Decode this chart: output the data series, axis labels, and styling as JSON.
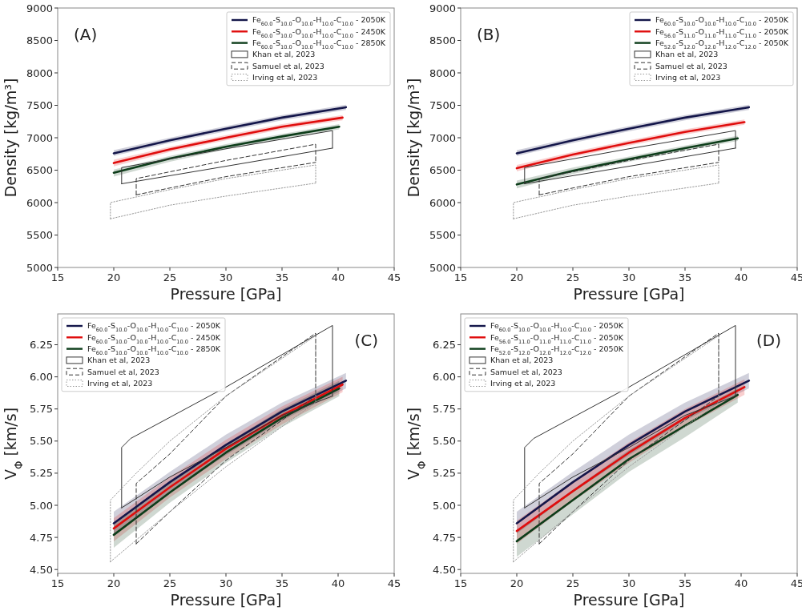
{
  "chart_data": [
    {
      "type": "line",
      "annotations": [
        "(A)"
      ],
      "xlabel": "Pressure [GPa]",
      "ylabel": "Density [kg/m³]",
      "xlim": [
        15,
        45
      ],
      "xticks": [
        15,
        20,
        25,
        30,
        35,
        40,
        45
      ],
      "ylim": [
        5000,
        9000
      ],
      "yticks": [
        5000,
        5500,
        6000,
        6500,
        7000,
        7500,
        8000,
        8500,
        9000
      ],
      "legend": "top right",
      "series": [
        {
          "name": "Fe$_{60.0}$-S$_{10.0}$-O$_{10.0}$-H$_{10.0}$-C$_{10.0}$ - 2050K",
          "color": "#14164a",
          "x": [
            20,
            25,
            30,
            35,
            40.7
          ],
          "values": [
            6760,
            6960,
            7140,
            7310,
            7470
          ],
          "lower": [
            6720,
            6920,
            7100,
            7270,
            7430
          ],
          "upper": [
            6810,
            7000,
            7180,
            7350,
            7510
          ]
        },
        {
          "name": "Fe$_{60.0}$-S$_{10.0}$-O$_{10.0}$-H$_{10.0}$-C$_{10.0}$ - 2450K",
          "color": "#e00d0d",
          "x": [
            20,
            25,
            30,
            35,
            40.4
          ],
          "values": [
            6610,
            6820,
            7000,
            7170,
            7310
          ],
          "lower": [
            6560,
            6780,
            6960,
            7130,
            7270
          ],
          "upper": [
            6660,
            6860,
            7040,
            7210,
            7350
          ]
        },
        {
          "name": "Fe$_{60.0}$-S$_{10.0}$-O$_{10.0}$-H$_{10.0}$-C$_{10.0}$ - 2850K",
          "color": "#0d3d1a",
          "x": [
            20,
            25,
            30,
            35,
            40.1
          ],
          "values": [
            6460,
            6680,
            6860,
            7020,
            7170
          ],
          "lower": [
            6400,
            6630,
            6820,
            6980,
            7130
          ],
          "upper": [
            6510,
            6720,
            6900,
            7060,
            7210
          ]
        },
        {
          "name": "Khan et al, 2023",
          "color": "#333333",
          "line_style": "solid",
          "x": [
            20.7,
            20.7,
            30,
            39.5,
            39.5
          ],
          "values": [
            6290,
            6540,
            6830,
            7110,
            6840
          ]
        },
        {
          "name": "Samuel et al, 2023",
          "color": "#333333",
          "line_style": "dashed",
          "x": [
            22,
            22,
            30,
            38,
            38
          ],
          "values": [
            6120,
            6370,
            6650,
            6900,
            6620
          ]
        },
        {
          "name": "Irving et al, 2023",
          "color": "#999999",
          "line_style": "dotted",
          "x": [
            19.7,
            19.7,
            25,
            30,
            38,
            38
          ],
          "values": [
            5750,
            6000,
            6200,
            6370,
            6580,
            6300
          ]
        },
        {
          "color": "#333333",
          "line_style": "solid",
          "x": [
            20.7,
            30,
            39.5
          ],
          "values": [
            6290,
            6560,
            6840
          ]
        },
        {
          "color": "#333333",
          "line_style": "dashed",
          "x": [
            22,
            30,
            38
          ],
          "values": [
            6120,
            6400,
            6620
          ]
        },
        {
          "color": "#999999",
          "line_style": "dotted",
          "x": [
            19.7,
            25,
            30,
            38
          ],
          "values": [
            5750,
            5960,
            6100,
            6300
          ]
        }
      ]
    },
    {
      "type": "line",
      "annotations": [
        "(B)"
      ],
      "xlabel": "Pressure [GPa]",
      "ylabel": "Density [kg/m³]",
      "xlim": [
        15,
        45
      ],
      "xticks": [
        15,
        20,
        25,
        30,
        35,
        40,
        45
      ],
      "ylim": [
        5000,
        9000
      ],
      "yticks": [
        5000,
        5500,
        6000,
        6500,
        7000,
        7500,
        8000,
        8500,
        9000
      ],
      "legend": "top right",
      "series": [
        {
          "name": "Fe$_{60.0}$-S$_{10.0}$-O$_{10.0}$-H$_{10.0}$-C$_{10.0}$ - 2050K",
          "color": "#14164a",
          "x": [
            20,
            25,
            30,
            35,
            40.7
          ],
          "values": [
            6760,
            6960,
            7140,
            7310,
            7470
          ],
          "lower": [
            6720,
            6920,
            7100,
            7270,
            7430
          ],
          "upper": [
            6810,
            7000,
            7180,
            7350,
            7510
          ]
        },
        {
          "name": "Fe$_{56.0}$-S$_{11.0}$-O$_{11.0}$-H$_{11.0}$-C$_{11.0}$ - 2050K",
          "color": "#e00d0d",
          "x": [
            20,
            25,
            30,
            35,
            40.3
          ],
          "values": [
            6530,
            6740,
            6920,
            7090,
            7240
          ],
          "lower": [
            6480,
            6700,
            6880,
            7050,
            7200
          ],
          "upper": [
            6580,
            6780,
            6960,
            7130,
            7280
          ]
        },
        {
          "name": "Fe$_{52.0}$-S$_{12.0}$-O$_{12.0}$-H$_{12.0}$-C$_{12.0}$ - 2050K",
          "color": "#0d3d1a",
          "x": [
            20,
            25,
            30,
            35,
            39.7
          ],
          "values": [
            6280,
            6490,
            6670,
            6840,
            6990
          ],
          "lower": [
            6220,
            6440,
            6630,
            6800,
            6950
          ],
          "upper": [
            6340,
            6540,
            6710,
            6880,
            7030
          ]
        },
        {
          "name": "Khan et al, 2023",
          "color": "#333333",
          "line_style": "solid",
          "x": [
            20.7,
            20.7,
            30,
            39.5,
            39.5
          ],
          "values": [
            6290,
            6540,
            6830,
            7110,
            6840
          ]
        },
        {
          "name": "Samuel et al, 2023",
          "color": "#333333",
          "line_style": "dashed",
          "x": [
            22,
            22,
            30,
            38,
            38
          ],
          "values": [
            6120,
            6370,
            6650,
            6900,
            6620
          ]
        },
        {
          "name": "Irving et al, 2023",
          "color": "#999999",
          "line_style": "dotted",
          "x": [
            19.7,
            19.7,
            25,
            30,
            38,
            38
          ],
          "values": [
            5750,
            6000,
            6200,
            6370,
            6580,
            6300
          ]
        },
        {
          "color": "#333333",
          "line_style": "solid",
          "x": [
            20.7,
            30,
            39.5
          ],
          "values": [
            6290,
            6560,
            6840
          ]
        },
        {
          "color": "#333333",
          "line_style": "dashed",
          "x": [
            22,
            30,
            38
          ],
          "values": [
            6120,
            6400,
            6620
          ]
        },
        {
          "color": "#999999",
          "line_style": "dotted",
          "x": [
            19.7,
            25,
            30,
            38
          ],
          "values": [
            5750,
            5960,
            6100,
            6300
          ]
        }
      ]
    },
    {
      "type": "line",
      "annotations": [
        "(C)"
      ],
      "xlabel": "Pressure [GPa]",
      "ylabel": "V$_{Φ}$ [km/s]",
      "xlim": [
        15,
        45
      ],
      "xticks": [
        15,
        20,
        25,
        30,
        35,
        40,
        45
      ],
      "ylim": [
        4.47,
        6.49
      ],
      "yticks": [
        {
          "value": 4.5,
          "label": "4.50"
        },
        {
          "value": 4.75,
          "label": "4.75"
        },
        {
          "value": 5,
          "label": "5.00"
        },
        {
          "value": 5.25,
          "label": "5.25"
        },
        {
          "value": 5.5,
          "label": "5.50"
        },
        {
          "value": 5.75,
          "label": "5.75"
        },
        {
          "value": 6,
          "label": "6.00"
        },
        {
          "value": 6.25,
          "label": "6.25"
        }
      ],
      "legend": "top left",
      "series": [
        {
          "name": "Fe$_{60.0}$-S$_{10.0}$-O$_{10.0}$-H$_{10.0}$-C$_{10.0}$ - 2050K",
          "color": "#14164a",
          "x": [
            20,
            25,
            30,
            35,
            40.7
          ],
          "values": [
            4.86,
            5.18,
            5.47,
            5.73,
            5.97
          ],
          "lower": [
            4.78,
            5.1,
            5.39,
            5.66,
            5.91
          ],
          "upper": [
            4.95,
            5.26,
            5.55,
            5.8,
            6.03
          ]
        },
        {
          "name": "Fe$_{60.0}$-S$_{10.0}$-O$_{10.0}$-H$_{10.0}$-C$_{10.0}$ - 2450K",
          "color": "#e00d0d",
          "x": [
            20,
            25,
            30,
            35,
            40.4
          ],
          "values": [
            4.82,
            5.14,
            5.44,
            5.7,
            5.94
          ],
          "lower": [
            4.72,
            5.06,
            5.36,
            5.63,
            5.88
          ],
          "upper": [
            4.9,
            5.22,
            5.51,
            5.77,
            6
          ]
        },
        {
          "name": "Fe$_{60.0}$-S$_{10.0}$-O$_{10.0}$-H$_{10.0}$-C$_{10.0}$ - 2850K",
          "color": "#0d3d1a",
          "x": [
            20,
            25,
            30,
            35,
            40.1
          ],
          "values": [
            4.77,
            5.1,
            5.41,
            5.68,
            5.91
          ],
          "lower": [
            4.67,
            5.02,
            5.33,
            5.61,
            5.85
          ],
          "upper": [
            4.86,
            5.18,
            5.48,
            5.75,
            5.97
          ]
        },
        {
          "name": "Khan et al, 2023",
          "color": "#333333",
          "line_style": "solid",
          "x": [
            20.7,
            20.7,
            21.5,
            30,
            39.5,
            39.5
          ],
          "values": [
            4.98,
            5.45,
            5.52,
            5.92,
            6.4,
            5.85
          ]
        },
        {
          "name": "Samuel et al, 2023",
          "color": "#333333",
          "line_style": "dashed",
          "x": [
            22,
            22,
            25,
            30,
            38,
            38
          ],
          "values": [
            4.7,
            5.17,
            5.4,
            5.85,
            6.34,
            5.85
          ]
        },
        {
          "name": "Irving et al, 2023",
          "color": "#999999",
          "line_style": "dotted",
          "x": [
            19.7,
            19.7,
            22,
            25,
            30,
            38
          ],
          "values": [
            4.56,
            5.04,
            5.25,
            5.5,
            5.85,
            6.32
          ]
        },
        {
          "color": "#333333",
          "line_style": "solid",
          "x": [
            20.7,
            25,
            30,
            35,
            39.5
          ],
          "values": [
            4.98,
            5.22,
            5.45,
            5.7,
            5.85
          ]
        },
        {
          "color": "#333333",
          "line_style": "dashed",
          "x": [
            22,
            25,
            30,
            38
          ],
          "values": [
            4.7,
            4.95,
            5.35,
            5.85
          ]
        },
        {
          "color": "#999999",
          "line_style": "dotted",
          "x": [
            19.7,
            25,
            30,
            38,
            38
          ],
          "values": [
            4.56,
            4.95,
            5.3,
            5.8,
            6.32
          ]
        }
      ]
    },
    {
      "type": "line",
      "annotations": [
        "(D)"
      ],
      "xlabel": "Pressure [GPa]",
      "ylabel": "V$_{Φ}$ [km/s]",
      "xlim": [
        15,
        45
      ],
      "xticks": [
        15,
        20,
        25,
        30,
        35,
        40,
        45
      ],
      "ylim": [
        4.47,
        6.49
      ],
      "yticks": [
        {
          "value": 4.5,
          "label": "4.50"
        },
        {
          "value": 4.75,
          "label": "4.75"
        },
        {
          "value": 5,
          "label": "5.00"
        },
        {
          "value": 5.25,
          "label": "5.25"
        },
        {
          "value": 5.5,
          "label": "5.50"
        },
        {
          "value": 5.75,
          "label": "5.75"
        },
        {
          "value": 6,
          "label": "6.00"
        },
        {
          "value": 6.25,
          "label": "6.25"
        }
      ],
      "legend": "top left",
      "series": [
        {
          "name": "Fe$_{60.0}$-S$_{10.0}$-O$_{10.0}$-H$_{10.0}$-C$_{10.0}$ - 2050K",
          "color": "#14164a",
          "x": [
            20,
            25,
            30,
            35,
            40.7
          ],
          "values": [
            4.86,
            5.18,
            5.47,
            5.73,
            5.97
          ],
          "lower": [
            4.78,
            5.1,
            5.39,
            5.66,
            5.91
          ],
          "upper": [
            4.95,
            5.26,
            5.55,
            5.8,
            6.03
          ]
        },
        {
          "name": "Fe$_{56.0}$-S$_{11.0}$-O$_{11.0}$-H$_{11.0}$-C$_{11.0}$ - 2050K",
          "color": "#e00d0d",
          "x": [
            20,
            25,
            30,
            35,
            40.3
          ],
          "values": [
            4.8,
            5.11,
            5.41,
            5.68,
            5.92
          ],
          "lower": [
            4.7,
            5.03,
            5.33,
            5.61,
            5.86
          ],
          "upper": [
            4.88,
            5.19,
            5.49,
            5.75,
            5.98
          ]
        },
        {
          "name": "Fe$_{52.0}$-S$_{12.0}$-O$_{12.0}$-H$_{12.0}$-C$_{12.0}$ - 2050K",
          "color": "#0d3d1a",
          "x": [
            20,
            25,
            30,
            35,
            39.7
          ],
          "values": [
            4.72,
            5.04,
            5.36,
            5.62,
            5.86
          ],
          "lower": [
            4.6,
            4.93,
            5.26,
            5.53,
            5.8
          ],
          "upper": [
            4.8,
            5.12,
            5.43,
            5.69,
            5.91
          ]
        },
        {
          "name": "Khan et al, 2023",
          "color": "#333333",
          "line_style": "solid",
          "x": [
            20.7,
            20.7,
            21.5,
            30,
            39.5,
            39.5
          ],
          "values": [
            4.98,
            5.45,
            5.52,
            5.92,
            6.4,
            5.85
          ]
        },
        {
          "name": "Samuel et al, 2023",
          "color": "#333333",
          "line_style": "dashed",
          "x": [
            22,
            22,
            25,
            30,
            38,
            38
          ],
          "values": [
            4.7,
            5.17,
            5.4,
            5.85,
            6.34,
            5.85
          ]
        },
        {
          "name": "Irving et al, 2023",
          "color": "#999999",
          "line_style": "dotted",
          "x": [
            19.7,
            19.7,
            22,
            25,
            30,
            38
          ],
          "values": [
            4.56,
            5.04,
            5.25,
            5.5,
            5.85,
            6.32
          ]
        },
        {
          "color": "#333333",
          "line_style": "solid",
          "x": [
            20.7,
            25,
            30,
            35,
            39.5
          ],
          "values": [
            4.98,
            5.22,
            5.45,
            5.7,
            5.85
          ]
        },
        {
          "color": "#333333",
          "line_style": "dashed",
          "x": [
            22,
            25,
            30,
            38
          ],
          "values": [
            4.7,
            4.95,
            5.35,
            5.85
          ]
        },
        {
          "color": "#999999",
          "line_style": "dotted",
          "x": [
            19.7,
            25,
            30,
            38,
            38
          ],
          "values": [
            4.56,
            4.95,
            5.3,
            5.8,
            6.32
          ]
        }
      ]
    }
  ]
}
